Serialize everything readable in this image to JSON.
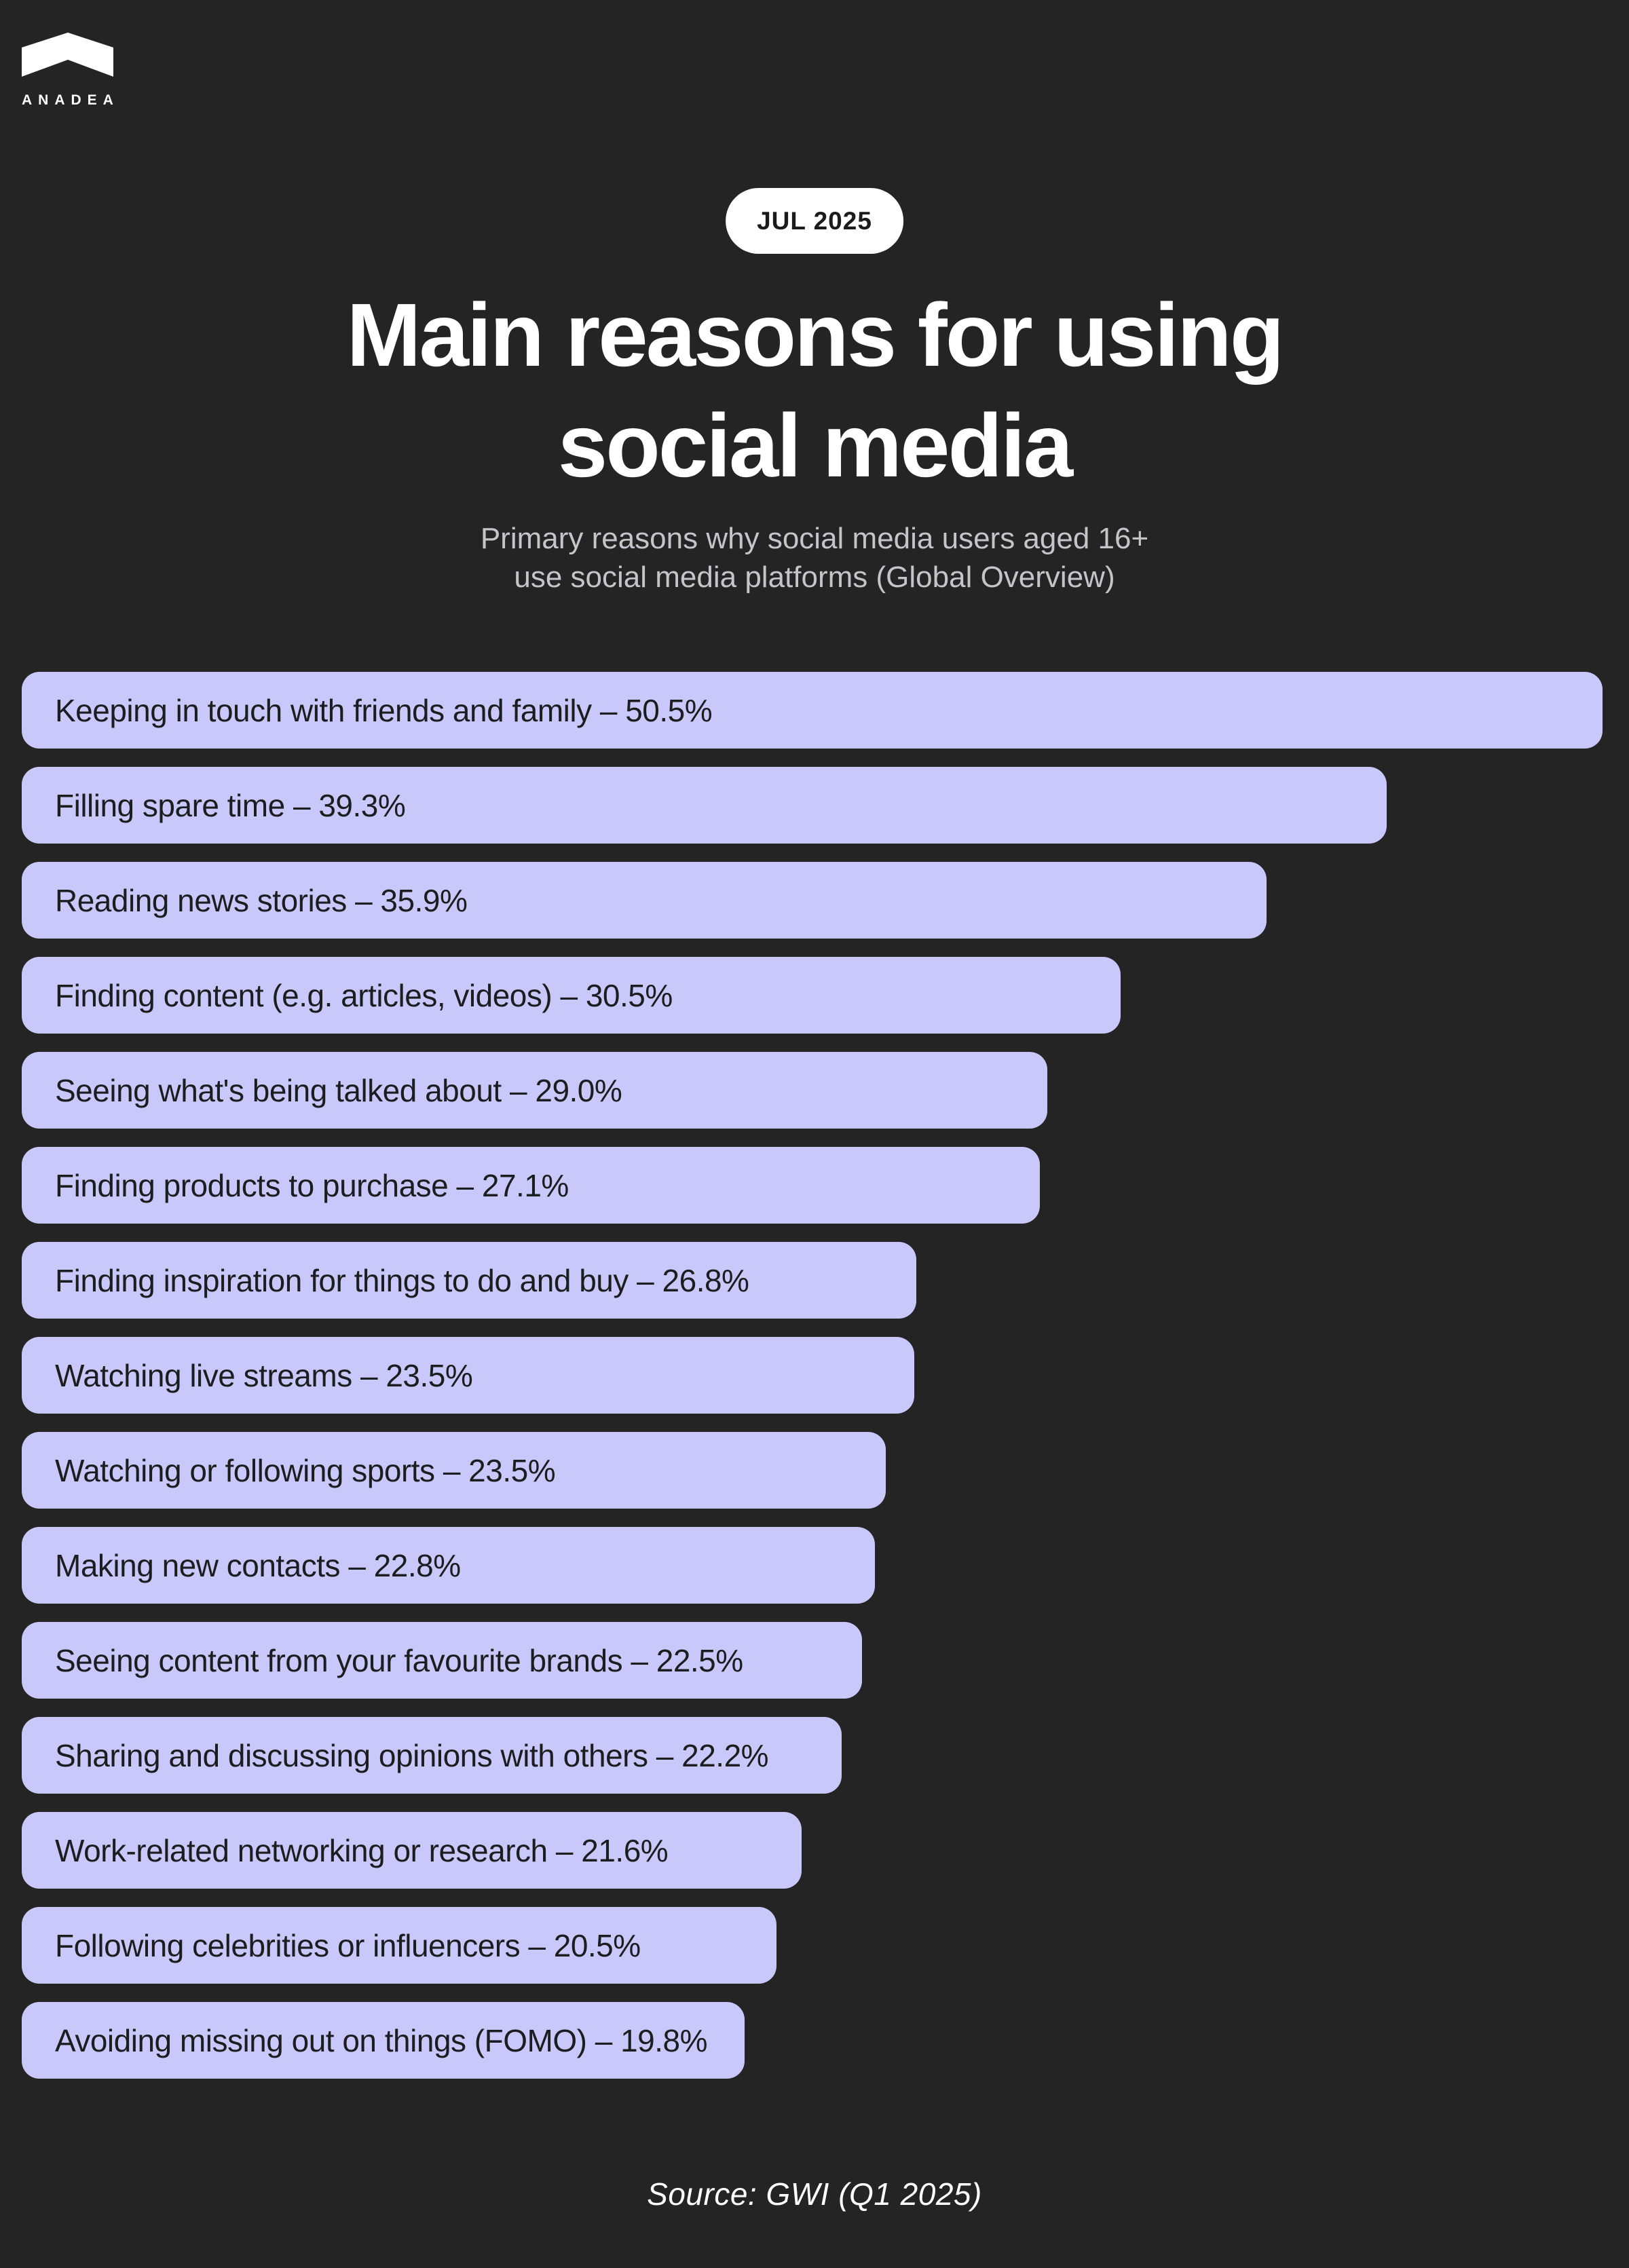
{
  "brand": {
    "wordmark": "ANADEA",
    "logo_icon": "chevron-roof",
    "logo_color": "#ffffff"
  },
  "badge": {
    "label": "JUL 2025",
    "bg_color": "#ffffff",
    "text_color": "#1b1b1b"
  },
  "title": {
    "line1": "Main reasons for using",
    "line2": "social media"
  },
  "subtitle": {
    "line1": "Primary reasons why social media users aged 16+",
    "line2": "use social media platforms (Global Overview)"
  },
  "source_note": "Source: GWI (Q1 2025)",
  "colors": {
    "background": "#242424",
    "bar_fill": "#c9c8fa",
    "bar_text": "#1d1d20",
    "title_text": "#ffffff",
    "subtitle_text": "#c5c4cb",
    "source_text": "#ffffff"
  },
  "chart_data": {
    "type": "bar",
    "orientation": "horizontal",
    "unit": "%",
    "title": "Main reasons for using social media",
    "xlabel": "",
    "ylabel": "",
    "value_range": [
      0,
      50.5
    ],
    "grid": false,
    "legend": false,
    "label_separator": " – ",
    "categories": [
      "Keeping in touch with friends and family",
      "Filling spare time",
      "Reading news stories",
      "Finding content (e.g. articles, videos)",
      "Seeing what's being talked about",
      "Finding products to purchase",
      "Finding inspiration for things to do and buy",
      "Watching live streams",
      "Watching or following sports",
      "Making new contacts",
      "Seeing content from your favourite brands",
      "Sharing and discussing opinions with others",
      "Work-related networking or research",
      "Following celebrities or influencers",
      "Avoiding missing out on things (FOMO)"
    ],
    "values": [
      50.5,
      39.3,
      35.9,
      30.5,
      29.0,
      27.1,
      26.8,
      23.5,
      23.5,
      22.8,
      22.5,
      22.2,
      21.6,
      20.5,
      19.8
    ],
    "bar_width_pct": [
      99.7,
      86.1,
      78.5,
      69.3,
      64.7,
      64.2,
      56.4,
      56.3,
      54.5,
      53.8,
      53.0,
      51.7,
      49.2,
      47.6,
      45.6
    ]
  }
}
